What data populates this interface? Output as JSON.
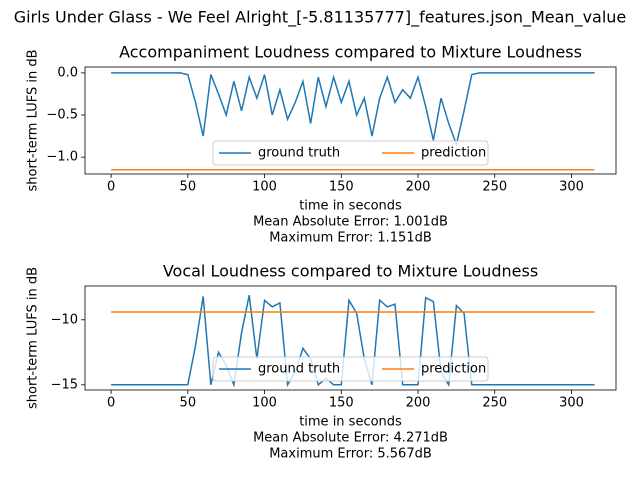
{
  "title": "Girls Under Glass - We Feel Alright_[-5.81135777]_features.json_Mean_value",
  "chart_data": [
    {
      "type": "line",
      "title": "Accompaniment Loudness compared to Mixture Loudness",
      "xlabel": "time in seconds",
      "ylabel": "short-term LUFS in dB",
      "annotations": [
        "Mean Absolute Error: 1.001dB",
        "Maximum Error: 1.151dB"
      ],
      "legend": "lower center",
      "legend_columns": 2,
      "x": [
        0,
        5,
        10,
        15,
        20,
        25,
        30,
        35,
        40,
        45,
        50,
        55,
        60,
        65,
        70,
        75,
        80,
        85,
        90,
        95,
        100,
        105,
        110,
        115,
        120,
        125,
        130,
        135,
        140,
        145,
        150,
        155,
        160,
        165,
        170,
        175,
        180,
        185,
        190,
        195,
        200,
        205,
        210,
        215,
        220,
        225,
        230,
        235,
        240,
        245,
        250,
        255,
        260,
        265,
        270,
        275,
        280,
        285,
        290,
        295,
        300,
        305,
        310,
        315
      ],
      "xlim": [
        -17,
        329
      ],
      "xticks": [
        0,
        50,
        100,
        150,
        200,
        250,
        300
      ],
      "ylim": [
        -1.2,
        0.07
      ],
      "yticks": [
        {
          "value": -1.0,
          "label": "−1.0"
        },
        {
          "value": -0.5,
          "label": "−0.5"
        },
        {
          "value": 0.0,
          "label": "0.0"
        }
      ],
      "series": [
        {
          "name": "ground truth",
          "color": "#1f77b4",
          "values": [
            0,
            0,
            0,
            0,
            0,
            0,
            0,
            0,
            0,
            0,
            -0.02,
            -0.35,
            -0.75,
            -0.02,
            -0.25,
            -0.5,
            -0.1,
            -0.45,
            -0.05,
            -0.3,
            -0.02,
            -0.5,
            -0.2,
            -0.55,
            -0.35,
            -0.1,
            -0.6,
            -0.05,
            -0.4,
            -0.05,
            -0.35,
            -0.1,
            -0.5,
            -0.3,
            -0.75,
            -0.3,
            -0.05,
            -0.35,
            -0.2,
            -0.3,
            -0.05,
            -0.4,
            -0.8,
            -0.3,
            -0.6,
            -0.85,
            -0.45,
            -0.02,
            0,
            0,
            0,
            0,
            0,
            0,
            0,
            0,
            0,
            0,
            0,
            0,
            0,
            0,
            0,
            0
          ]
        },
        {
          "name": "prediction",
          "color": "#ff7f0e",
          "values": [
            -1.15,
            -1.15,
            -1.15,
            -1.15,
            -1.15,
            -1.15,
            -1.15,
            -1.15,
            -1.15,
            -1.15,
            -1.15,
            -1.15,
            -1.15,
            -1.15,
            -1.15,
            -1.15,
            -1.15,
            -1.15,
            -1.15,
            -1.15,
            -1.15,
            -1.15,
            -1.15,
            -1.15,
            -1.15,
            -1.15,
            -1.15,
            -1.15,
            -1.15,
            -1.15,
            -1.15,
            -1.15,
            -1.15,
            -1.15,
            -1.15,
            -1.15,
            -1.15,
            -1.15,
            -1.15,
            -1.15,
            -1.15,
            -1.15,
            -1.15,
            -1.15,
            -1.15,
            -1.15,
            -1.15,
            -1.15,
            -1.15,
            -1.15,
            -1.15,
            -1.15,
            -1.15,
            -1.15,
            -1.15,
            -1.15,
            -1.15,
            -1.15,
            -1.15,
            -1.15,
            -1.15,
            -1.15,
            -1.15,
            -1.15
          ]
        }
      ]
    },
    {
      "type": "line",
      "title": "Vocal Loudness compared to Mixture Loudness",
      "xlabel": "time in seconds",
      "ylabel": "short-term LUFS in dB",
      "annotations": [
        "Mean Absolute Error: 4.271dB",
        "Maximum Error: 5.567dB"
      ],
      "legend": "lower center",
      "legend_columns": 2,
      "x": [
        0,
        5,
        10,
        15,
        20,
        25,
        30,
        35,
        40,
        45,
        50,
        55,
        60,
        65,
        70,
        75,
        80,
        85,
        90,
        95,
        100,
        105,
        110,
        115,
        120,
        125,
        130,
        135,
        140,
        145,
        150,
        155,
        160,
        165,
        170,
        175,
        180,
        185,
        190,
        195,
        200,
        205,
        210,
        215,
        220,
        225,
        230,
        235,
        240,
        245,
        250,
        255,
        260,
        265,
        270,
        275,
        280,
        285,
        290,
        295,
        300,
        305,
        310,
        315
      ],
      "xlim": [
        -17,
        329
      ],
      "xticks": [
        0,
        50,
        100,
        150,
        200,
        250,
        300
      ],
      "ylim": [
        -15.4,
        -7.4
      ],
      "yticks": [
        {
          "value": -15,
          "label": "−15"
        },
        {
          "value": -10,
          "label": "−10"
        }
      ],
      "series": [
        {
          "name": "ground truth",
          "color": "#1f77b4",
          "values": [
            -15,
            -15,
            -15,
            -15,
            -15,
            -15,
            -15,
            -15,
            -15,
            -15,
            -15,
            -12,
            -8.2,
            -15,
            -12.5,
            -13.5,
            -15,
            -11,
            -8.1,
            -13,
            -8.5,
            -9,
            -8.7,
            -15,
            -14,
            -12.2,
            -13,
            -15,
            -14.5,
            -15,
            -15,
            -8.5,
            -9.5,
            -13,
            -15,
            -8.5,
            -9,
            -8.8,
            -15,
            -15,
            -15,
            -8.3,
            -8.6,
            -14,
            -15,
            -8.9,
            -9.5,
            -15,
            -15,
            -15,
            -15,
            -15,
            -15,
            -15,
            -15,
            -15,
            -15,
            -15,
            -15,
            -15,
            -15,
            -15,
            -15,
            -15
          ]
        },
        {
          "name": "prediction",
          "color": "#ff7f0e",
          "values": [
            -9.4,
            -9.4,
            -9.4,
            -9.4,
            -9.4,
            -9.4,
            -9.4,
            -9.4,
            -9.4,
            -9.4,
            -9.4,
            -9.4,
            -9.4,
            -9.4,
            -9.4,
            -9.4,
            -9.4,
            -9.4,
            -9.4,
            -9.4,
            -9.4,
            -9.4,
            -9.4,
            -9.4,
            -9.4,
            -9.4,
            -9.4,
            -9.4,
            -9.4,
            -9.4,
            -9.4,
            -9.4,
            -9.4,
            -9.4,
            -9.4,
            -9.4,
            -9.4,
            -9.4,
            -9.4,
            -9.4,
            -9.4,
            -9.4,
            -9.4,
            -9.4,
            -9.4,
            -9.4,
            -9.4,
            -9.4,
            -9.4,
            -9.4,
            -9.4,
            -9.4,
            -9.4,
            -9.4,
            -9.4,
            -9.4,
            -9.4,
            -9.4,
            -9.4,
            -9.4,
            -9.4,
            -9.4,
            -9.4,
            -9.4
          ]
        }
      ]
    }
  ]
}
